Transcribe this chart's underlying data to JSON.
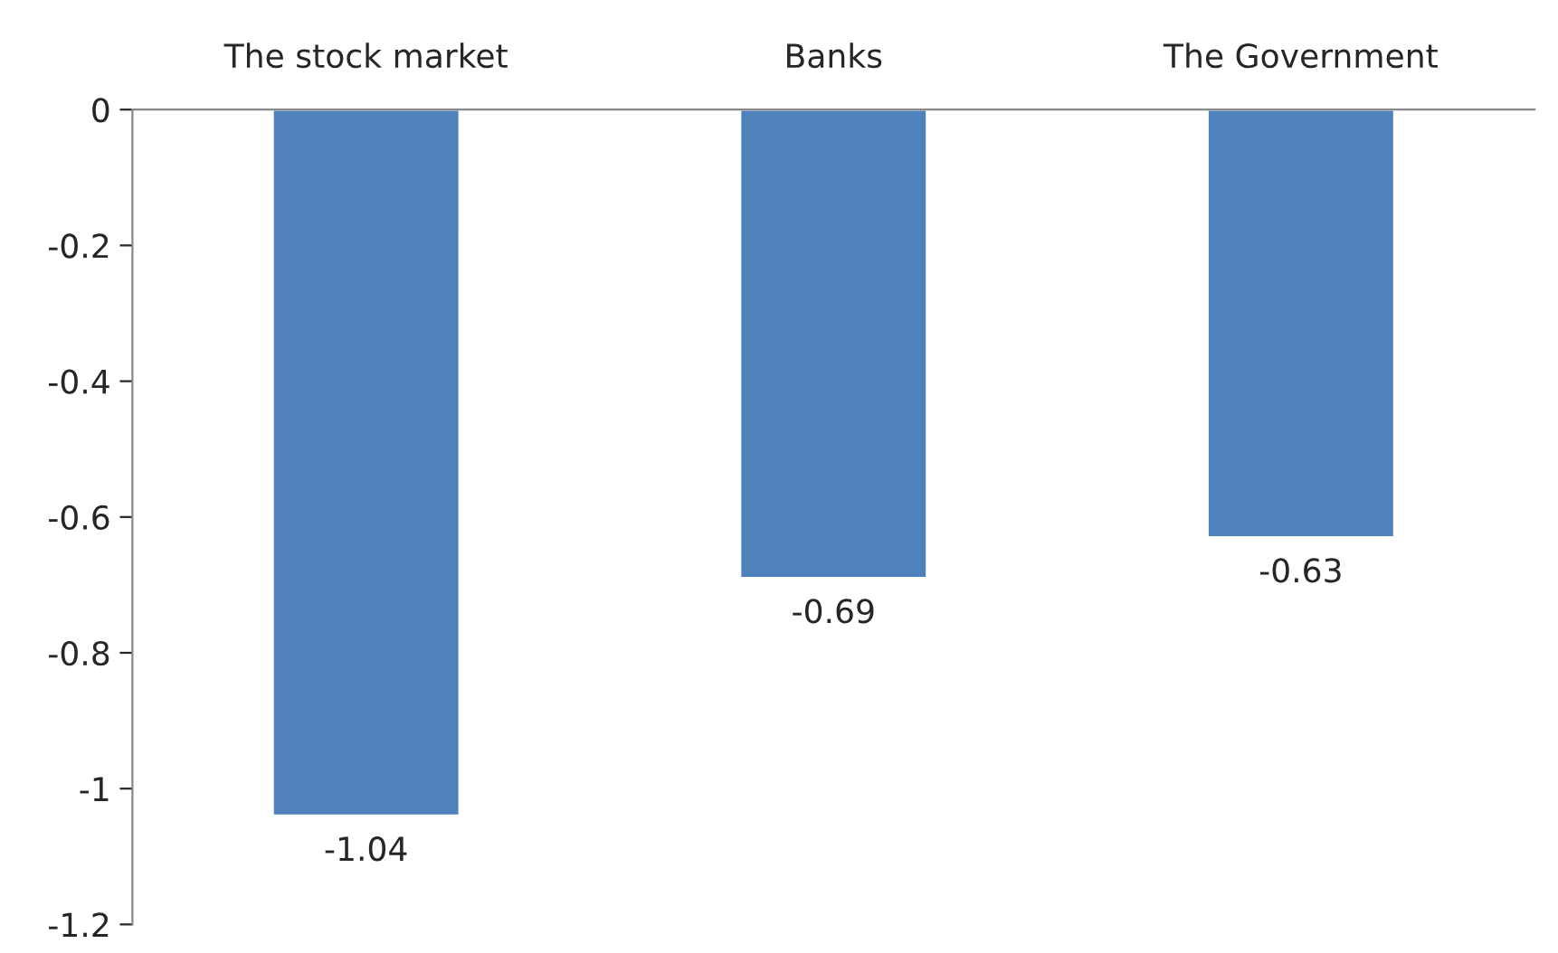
{
  "chart_data": {
    "type": "bar",
    "categories": [
      "The stock market",
      "Banks",
      "The Government"
    ],
    "values": [
      -1.04,
      -0.69,
      -0.63
    ],
    "color": "#4f81bd",
    "ylim": [
      -1.2,
      0
    ],
    "yticks": [
      0,
      -0.2,
      -0.4,
      -0.6,
      -0.8,
      -1,
      -1.2
    ],
    "data_labels": true,
    "grid": false
  }
}
